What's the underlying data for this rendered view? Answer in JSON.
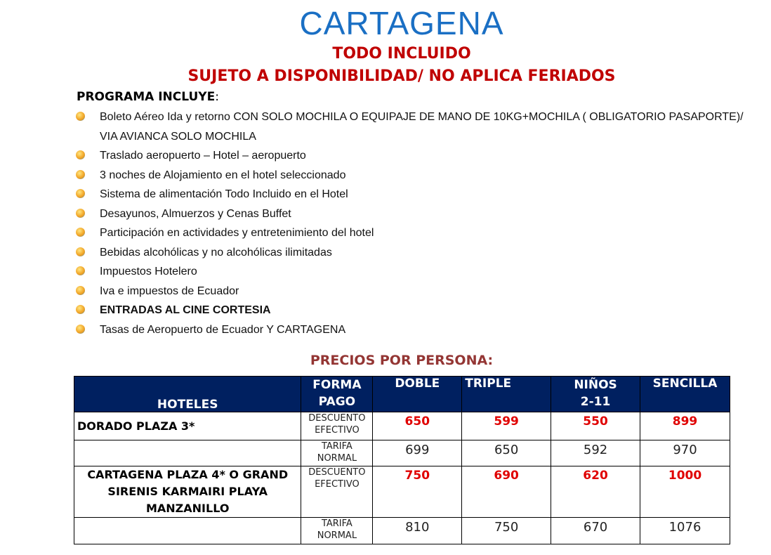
{
  "title": "CARTAGENA",
  "subtitle1": "TODO INCLUIDO",
  "subtitle2": "SUJETO A DISPONIBILIDAD/ NO APLICA FERIADOS",
  "program_label": "PROGRAMA INCLUYE",
  "program_colon": ":",
  "items": [
    "Boleto Aéreo Ida y retorno CON SOLO MOCHILA O EQUIPAJE DE MANO DE 10KG+MOCHILA  ( OBLIGATORIO PASAPORTE)/ VIA AVIANCA SOLO MOCHILA",
    "Traslado aeropuerto – Hotel – aeropuerto",
    "3 noches de Alojamiento en el hotel seleccionado",
    "Sistema de alimentación Todo Incluido en el Hotel",
    "Desayunos, Almuerzos y Cenas Buffet",
    "Participación en actividades y entretenimiento del hotel",
    "Bebidas alcohólicas y no alcohólicas ilimitadas",
    "Impuestos Hotelero",
    "Iva e impuestos de Ecuador",
    "ENTRADAS AL CINE CORTESIA",
    "Tasas de Aeropuerto de Ecuador Y CARTAGENA"
  ],
  "prices_title": "PRECIOS POR PERSONA:",
  "table": {
    "headers": [
      "HOTELES",
      "FORMA PAGO",
      "DOBLE",
      "TRIPLE",
      "NIÑOS 2-11",
      "SENCILLA"
    ],
    "rows": [
      {
        "hotel": "DORADO PLAZA 3*",
        "pago": "DESCUENTO EFECTIVO",
        "doble": "650",
        "triple": "599",
        "ninos": "550",
        "sencilla": "899"
      },
      {
        "hotel": "",
        "pago": "TARIFA NORMAL",
        "doble": "699",
        "triple": "650",
        "ninos": "592",
        "sencilla": "970"
      },
      {
        "hotel": "CARTAGENA PLAZA 4* O GRAND SIRENIS KARMAIRI PLAYA MANZANILLO",
        "pago": "DESCUENTO EFECTIVO",
        "doble": "750",
        "triple": "690",
        "ninos": "620",
        "sencilla": "1000"
      },
      {
        "hotel": "",
        "pago": "TARIFA NORMAL",
        "doble": "810",
        "triple": "750",
        "ninos": "670",
        "sencilla": "1076"
      }
    ]
  },
  "colors": {
    "title": "#1a6fc4",
    "subtitle": "#c00000",
    "header_bg": "#002060",
    "discount": "#e00000"
  },
  "bullet_icon": "beach-sun-icon"
}
